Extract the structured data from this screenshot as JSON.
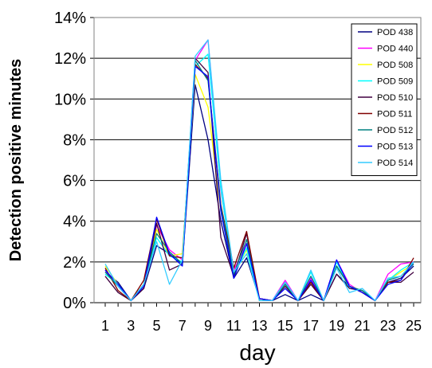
{
  "chart_data": {
    "type": "line",
    "title": "",
    "xlabel": "day",
    "ylabel": "Detection positive minutes",
    "x": [
      1,
      2,
      3,
      4,
      5,
      6,
      7,
      8,
      9,
      10,
      11,
      12,
      13,
      14,
      15,
      16,
      17,
      18,
      19,
      20,
      21,
      22,
      23,
      24,
      25
    ],
    "x_tick_labels": [
      "1",
      "3",
      "5",
      "7",
      "9",
      "11",
      "13",
      "15",
      "17",
      "19",
      "21",
      "23",
      "25"
    ],
    "y_tick_labels": [
      "0%",
      "2%",
      "4%",
      "6%",
      "8%",
      "10%",
      "12%",
      "14%"
    ],
    "ylim": [
      0,
      14
    ],
    "y_unit": "%",
    "grid": "horizontal",
    "legend_position": "top-right",
    "series": [
      {
        "name": "POD 438",
        "color": "#000080",
        "values": [
          1.5,
          1.0,
          0.1,
          0.7,
          2.8,
          2.4,
          1.9,
          10.7,
          8.0,
          4.0,
          1.2,
          2.2,
          0.2,
          0.1,
          0.4,
          0.1,
          0.4,
          0.1,
          1.4,
          0.8,
          0.5,
          0.1,
          1.0,
          1.2,
          1.8
        ]
      },
      {
        "name": "POD 440",
        "color": "#ff00ff",
        "values": [
          1.6,
          0.8,
          0.1,
          0.9,
          3.8,
          2.6,
          2.1,
          11.9,
          12.9,
          5.5,
          1.6,
          2.9,
          0.2,
          0.1,
          1.1,
          0.1,
          1.2,
          0.1,
          2.1,
          0.9,
          0.5,
          0.1,
          1.4,
          1.9,
          2.0
        ]
      },
      {
        "name": "POD 508",
        "color": "#ffff00",
        "values": [
          1.8,
          0.9,
          0.1,
          0.9,
          3.6,
          2.3,
          2.4,
          11.2,
          9.6,
          4.5,
          1.4,
          2.6,
          0.1,
          0.1,
          0.9,
          0.1,
          1.0,
          0.1,
          1.8,
          0.8,
          0.6,
          0.1,
          1.1,
          1.5,
          1.9
        ]
      },
      {
        "name": "POD 509",
        "color": "#00ffff",
        "values": [
          1.4,
          0.9,
          0.1,
          0.9,
          3.2,
          2.3,
          2.0,
          11.6,
          12.2,
          5.6,
          1.3,
          2.7,
          0.1,
          0.1,
          1.0,
          0.1,
          1.5,
          0.1,
          2.0,
          0.7,
          0.6,
          0.1,
          1.1,
          1.6,
          2.0
        ]
      },
      {
        "name": "POD 510",
        "color": "#400040",
        "values": [
          1.3,
          0.5,
          0.1,
          0.7,
          3.9,
          1.6,
          1.9,
          12.0,
          11.3,
          3.2,
          1.3,
          3.4,
          0.1,
          0.1,
          0.8,
          0.1,
          0.9,
          0.1,
          1.4,
          0.7,
          0.6,
          0.1,
          1.0,
          1.0,
          1.5
        ]
      },
      {
        "name": "POD 511",
        "color": "#800000",
        "values": [
          1.7,
          0.6,
          0.1,
          1.1,
          4.1,
          2.3,
          2.2,
          11.7,
          11.0,
          4.8,
          1.7,
          3.5,
          0.2,
          0.1,
          0.9,
          0.1,
          1.0,
          0.1,
          1.8,
          0.8,
          0.5,
          0.1,
          1.0,
          1.1,
          2.2
        ]
      },
      {
        "name": "POD 512",
        "color": "#008080",
        "values": [
          1.5,
          0.8,
          0.1,
          0.9,
          3.4,
          2.5,
          1.9,
          11.9,
          10.9,
          4.7,
          1.4,
          3.1,
          0.1,
          0.1,
          0.9,
          0.1,
          1.3,
          0.1,
          1.8,
          0.8,
          0.6,
          0.1,
          1.1,
          1.3,
          1.9
        ]
      },
      {
        "name": "POD 513",
        "color": "#0000ff",
        "values": [
          1.6,
          0.9,
          0.1,
          0.8,
          4.2,
          2.4,
          1.8,
          11.6,
          11.1,
          4.5,
          1.2,
          2.9,
          0.2,
          0.1,
          0.7,
          0.1,
          1.1,
          0.1,
          2.1,
          0.8,
          0.5,
          0.1,
          0.9,
          1.1,
          2.0
        ]
      },
      {
        "name": "POD 514",
        "color": "#33ccff",
        "values": [
          1.9,
          0.8,
          0.1,
          0.9,
          3.0,
          0.9,
          2.1,
          12.1,
          12.9,
          6.0,
          1.5,
          2.4,
          0.1,
          0.1,
          1.0,
          0.1,
          1.6,
          0.1,
          1.7,
          0.5,
          0.7,
          0.1,
          1.2,
          1.3,
          2.0
        ]
      }
    ]
  }
}
